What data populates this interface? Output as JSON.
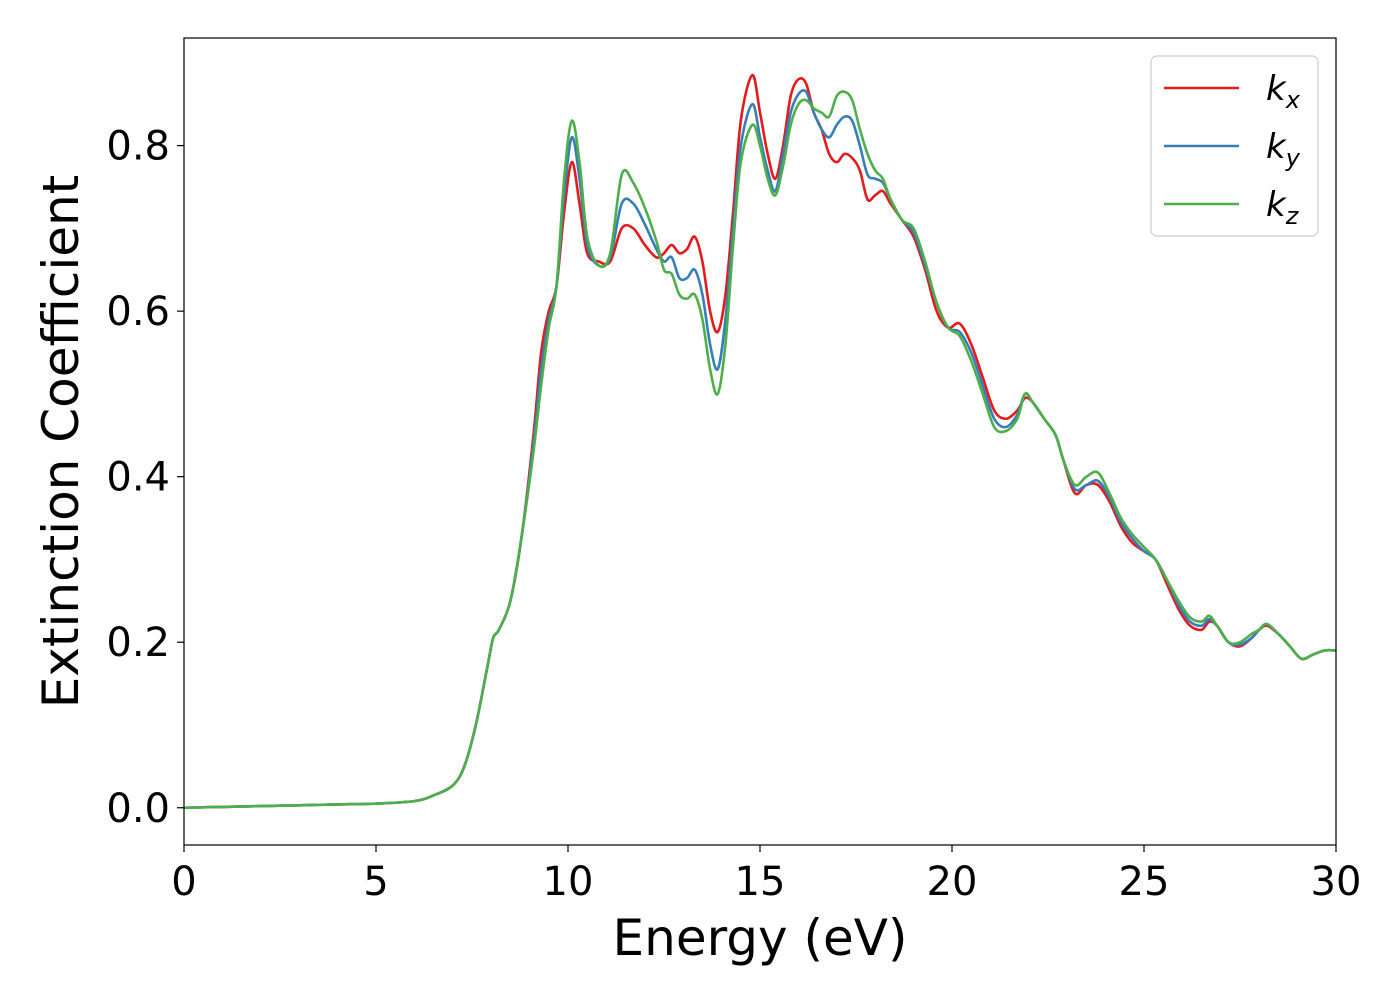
{
  "chart_data": {
    "type": "line",
    "title": "",
    "xlabel": "Energy (eV)",
    "ylabel": "Extinction Coefficient",
    "xlim": [
      0,
      30
    ],
    "ylim": [
      -0.045,
      0.93
    ],
    "xticks": [
      0,
      5,
      10,
      15,
      20,
      25,
      30
    ],
    "yticks": [
      0.0,
      0.2,
      0.4,
      0.6,
      0.8
    ],
    "xtick_labels": [
      "0",
      "5",
      "10",
      "15",
      "20",
      "25",
      "30"
    ],
    "ytick_labels": [
      "0.0",
      "0.2",
      "0.4",
      "0.6",
      "0.8"
    ],
    "grid": false,
    "legend_position": "top-right",
    "series": [
      {
        "name": "k",
        "subscript": "x",
        "color": "#e41a1c",
        "x": [
          0,
          1,
          2,
          3,
          4,
          5,
          6,
          6.5,
          7,
          7.3,
          7.6,
          7.9,
          8.05,
          8.2,
          8.5,
          8.8,
          9.1,
          9.3,
          9.5,
          9.7,
          9.9,
          10.1,
          10.3,
          10.5,
          10.8,
          11.1,
          11.4,
          11.7,
          12.0,
          12.3,
          12.5,
          12.7,
          12.9,
          13.1,
          13.3,
          13.5,
          13.7,
          13.9,
          14.1,
          14.3,
          14.5,
          14.8,
          15.0,
          15.2,
          15.4,
          15.6,
          15.8,
          16.0,
          16.2,
          16.4,
          16.6,
          16.8,
          17.0,
          17.2,
          17.4,
          17.6,
          17.8,
          18.0,
          18.2,
          18.4,
          18.7,
          19.0,
          19.3,
          19.6,
          19.9,
          20.2,
          20.5,
          20.8,
          21.1,
          21.4,
          21.7,
          21.9,
          22.1,
          22.4,
          22.7,
          22.9,
          23.2,
          23.5,
          23.8,
          24.1,
          24.4,
          24.7,
          25.0,
          25.3,
          25.6,
          25.9,
          26.2,
          26.5,
          26.7,
          26.9,
          27.2,
          27.5,
          27.8,
          28.0,
          28.2,
          28.5,
          28.8,
          29.1,
          29.4,
          29.7,
          30
        ],
        "y": [
          0.0,
          0.001,
          0.002,
          0.003,
          0.004,
          0.005,
          0.008,
          0.015,
          0.027,
          0.05,
          0.1,
          0.17,
          0.205,
          0.215,
          0.25,
          0.33,
          0.45,
          0.55,
          0.6,
          0.63,
          0.72,
          0.78,
          0.73,
          0.67,
          0.66,
          0.66,
          0.7,
          0.7,
          0.68,
          0.665,
          0.67,
          0.68,
          0.67,
          0.675,
          0.69,
          0.66,
          0.6,
          0.575,
          0.62,
          0.72,
          0.83,
          0.885,
          0.84,
          0.79,
          0.76,
          0.8,
          0.86,
          0.88,
          0.875,
          0.84,
          0.82,
          0.79,
          0.78,
          0.79,
          0.785,
          0.77,
          0.735,
          0.74,
          0.745,
          0.73,
          0.71,
          0.69,
          0.65,
          0.6,
          0.58,
          0.585,
          0.56,
          0.52,
          0.48,
          0.47,
          0.48,
          0.495,
          0.49,
          0.47,
          0.45,
          0.42,
          0.38,
          0.39,
          0.39,
          0.37,
          0.34,
          0.32,
          0.31,
          0.3,
          0.27,
          0.24,
          0.22,
          0.215,
          0.225,
          0.22,
          0.2,
          0.195,
          0.205,
          0.215,
          0.22,
          0.21,
          0.195,
          0.18,
          0.185,
          0.19,
          0.19
        ]
      },
      {
        "name": "k",
        "subscript": "y",
        "color": "#377eb8",
        "x": [
          0,
          1,
          2,
          3,
          4,
          5,
          6,
          6.5,
          7,
          7.3,
          7.6,
          7.9,
          8.05,
          8.2,
          8.5,
          8.8,
          9.1,
          9.3,
          9.5,
          9.7,
          9.9,
          10.1,
          10.3,
          10.5,
          10.8,
          11.1,
          11.4,
          11.7,
          12.0,
          12.3,
          12.5,
          12.7,
          12.9,
          13.1,
          13.3,
          13.5,
          13.7,
          13.9,
          14.1,
          14.3,
          14.5,
          14.8,
          15.0,
          15.2,
          15.4,
          15.6,
          15.8,
          16.0,
          16.2,
          16.4,
          16.6,
          16.8,
          17.0,
          17.2,
          17.4,
          17.6,
          17.8,
          18.0,
          18.2,
          18.4,
          18.7,
          19.0,
          19.3,
          19.6,
          19.9,
          20.2,
          20.5,
          20.8,
          21.1,
          21.4,
          21.7,
          21.9,
          22.1,
          22.4,
          22.7,
          22.9,
          23.2,
          23.5,
          23.8,
          24.1,
          24.4,
          24.7,
          25.0,
          25.3,
          25.6,
          25.9,
          26.2,
          26.5,
          26.7,
          26.9,
          27.2,
          27.5,
          27.8,
          28.0,
          28.2,
          28.5,
          28.8,
          29.1,
          29.4,
          29.7,
          30
        ],
        "y": [
          0.0,
          0.001,
          0.002,
          0.003,
          0.004,
          0.005,
          0.008,
          0.015,
          0.027,
          0.05,
          0.1,
          0.17,
          0.205,
          0.215,
          0.25,
          0.33,
          0.44,
          0.53,
          0.59,
          0.63,
          0.74,
          0.81,
          0.76,
          0.68,
          0.655,
          0.665,
          0.73,
          0.73,
          0.705,
          0.675,
          0.66,
          0.665,
          0.64,
          0.64,
          0.65,
          0.62,
          0.56,
          0.53,
          0.59,
          0.7,
          0.8,
          0.85,
          0.81,
          0.77,
          0.745,
          0.79,
          0.84,
          0.862,
          0.865,
          0.84,
          0.82,
          0.81,
          0.825,
          0.835,
          0.83,
          0.8,
          0.765,
          0.76,
          0.755,
          0.735,
          0.71,
          0.695,
          0.655,
          0.61,
          0.58,
          0.575,
          0.55,
          0.51,
          0.47,
          0.46,
          0.475,
          0.5,
          0.49,
          0.47,
          0.45,
          0.42,
          0.385,
          0.39,
          0.395,
          0.375,
          0.345,
          0.325,
          0.31,
          0.3,
          0.275,
          0.245,
          0.225,
          0.22,
          0.228,
          0.22,
          0.2,
          0.197,
          0.205,
          0.215,
          0.222,
          0.21,
          0.195,
          0.18,
          0.185,
          0.19,
          0.19
        ]
      },
      {
        "name": "k",
        "subscript": "z",
        "color": "#4daf4a",
        "x": [
          0,
          1,
          2,
          3,
          4,
          5,
          6,
          6.5,
          7,
          7.3,
          7.6,
          7.9,
          8.05,
          8.2,
          8.5,
          8.8,
          9.1,
          9.3,
          9.5,
          9.7,
          9.9,
          10.1,
          10.3,
          10.5,
          10.8,
          11.1,
          11.4,
          11.7,
          12.0,
          12.3,
          12.5,
          12.7,
          12.9,
          13.1,
          13.3,
          13.5,
          13.7,
          13.9,
          14.1,
          14.3,
          14.5,
          14.8,
          15.0,
          15.2,
          15.4,
          15.6,
          15.8,
          16.0,
          16.2,
          16.4,
          16.6,
          16.8,
          17.0,
          17.2,
          17.4,
          17.6,
          17.8,
          18.0,
          18.2,
          18.4,
          18.7,
          19.0,
          19.3,
          19.6,
          19.9,
          20.2,
          20.5,
          20.8,
          21.1,
          21.4,
          21.7,
          21.9,
          22.1,
          22.4,
          22.7,
          22.9,
          23.2,
          23.5,
          23.8,
          24.1,
          24.4,
          24.7,
          25.0,
          25.3,
          25.6,
          25.9,
          26.2,
          26.5,
          26.7,
          26.9,
          27.2,
          27.5,
          27.8,
          28.0,
          28.2,
          28.5,
          28.8,
          29.1,
          29.4,
          29.7,
          30
        ],
        "y": [
          0.0,
          0.001,
          0.002,
          0.003,
          0.004,
          0.005,
          0.008,
          0.015,
          0.027,
          0.05,
          0.1,
          0.17,
          0.205,
          0.215,
          0.25,
          0.33,
          0.43,
          0.51,
          0.58,
          0.63,
          0.76,
          0.83,
          0.78,
          0.69,
          0.655,
          0.67,
          0.765,
          0.755,
          0.725,
          0.685,
          0.65,
          0.645,
          0.62,
          0.615,
          0.62,
          0.59,
          0.53,
          0.5,
          0.56,
          0.68,
          0.78,
          0.825,
          0.8,
          0.76,
          0.74,
          0.775,
          0.825,
          0.85,
          0.855,
          0.845,
          0.84,
          0.835,
          0.86,
          0.865,
          0.855,
          0.82,
          0.79,
          0.77,
          0.76,
          0.735,
          0.71,
          0.7,
          0.66,
          0.61,
          0.58,
          0.57,
          0.54,
          0.5,
          0.46,
          0.455,
          0.47,
          0.5,
          0.49,
          0.47,
          0.45,
          0.42,
          0.39,
          0.4,
          0.405,
          0.38,
          0.35,
          0.33,
          0.315,
          0.3,
          0.275,
          0.25,
          0.23,
          0.225,
          0.232,
          0.22,
          0.2,
          0.2,
          0.21,
          0.215,
          0.222,
          0.21,
          0.195,
          0.18,
          0.185,
          0.19,
          0.19
        ]
      }
    ]
  }
}
